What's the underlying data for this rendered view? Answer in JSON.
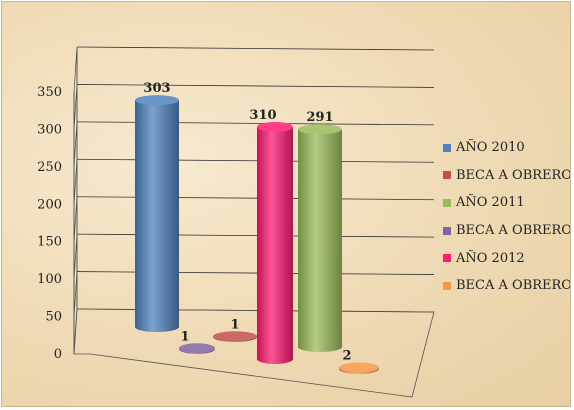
{
  "chart_data": {
    "type": "bar",
    "title": "",
    "xlabel": "",
    "ylabel": "",
    "ylim": [
      0,
      350
    ],
    "yticks": [
      0,
      50,
      100,
      150,
      200,
      250,
      300,
      350
    ],
    "grid": true,
    "legend_position": "right",
    "series": [
      {
        "name": "AÑO 2010",
        "value": 303,
        "label": "303",
        "color": "#4f81bd"
      },
      {
        "name": "BECA A OBRERO",
        "value": 1,
        "label": "1",
        "color": "#c0504d"
      },
      {
        "name": "AÑO 2011",
        "value": 291,
        "label": "291",
        "color": "#9bbb59"
      },
      {
        "name": "BECA A OBRERO",
        "value": 1,
        "label": "1",
        "color": "#8064a2"
      },
      {
        "name": "AÑO 2012",
        "value": 310,
        "label": "310",
        "color": "#ff1a72"
      },
      {
        "name": "BECA A OBRERO",
        "value": 2,
        "label": "2",
        "color": "#f79646"
      }
    ]
  }
}
